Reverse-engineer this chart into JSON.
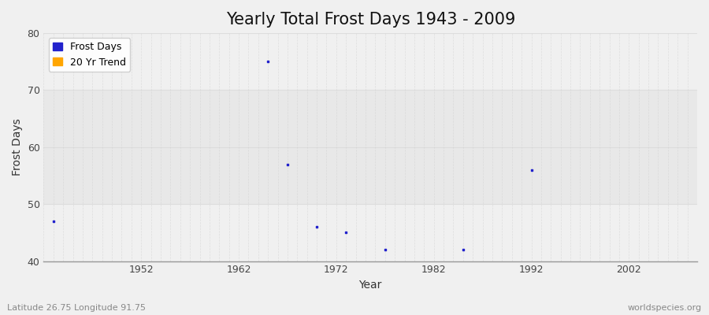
{
  "title": "Yearly Total Frost Days 1943 - 2009",
  "xlabel": "Year",
  "ylabel": "Frost Days",
  "footnote_left": "Latitude 26.75 Longitude 91.75",
  "footnote_right": "worldspecies.org",
  "xlim": [
    1942,
    2009
  ],
  "ylim": [
    40,
    80
  ],
  "yticks": [
    40,
    50,
    60,
    70,
    80
  ],
  "xticks": [
    1952,
    1962,
    1972,
    1982,
    1992,
    2002
  ],
  "frost_days_x": [
    1943,
    1965,
    1967,
    1970,
    1973,
    1977,
    1985,
    1992
  ],
  "frost_days_y": [
    47,
    75,
    57,
    46,
    45,
    42,
    42,
    56
  ],
  "point_color": "#2222cc",
  "trend_color": "#FFA500",
  "bg_color": "#f0f0f0",
  "plot_bg_color": "#f0f0f0",
  "band_color_1": "#f0f0f0",
  "band_color_2": "#e8e8e8",
  "grid_v_color": "#cccccc",
  "grid_h_color": "#dddddd",
  "title_fontsize": 15,
  "axis_fontsize": 10,
  "tick_fontsize": 9,
  "legend_fontsize": 9,
  "tick_color": "#444444",
  "footnote_color": "#888888",
  "band_ranges": [
    [
      40,
      50
    ],
    [
      50,
      60
    ],
    [
      60,
      70
    ],
    [
      70,
      80
    ]
  ],
  "band_colors": [
    "#f0f0f0",
    "#e8e8e8",
    "#e8e8e8",
    "#f0f0f0"
  ]
}
